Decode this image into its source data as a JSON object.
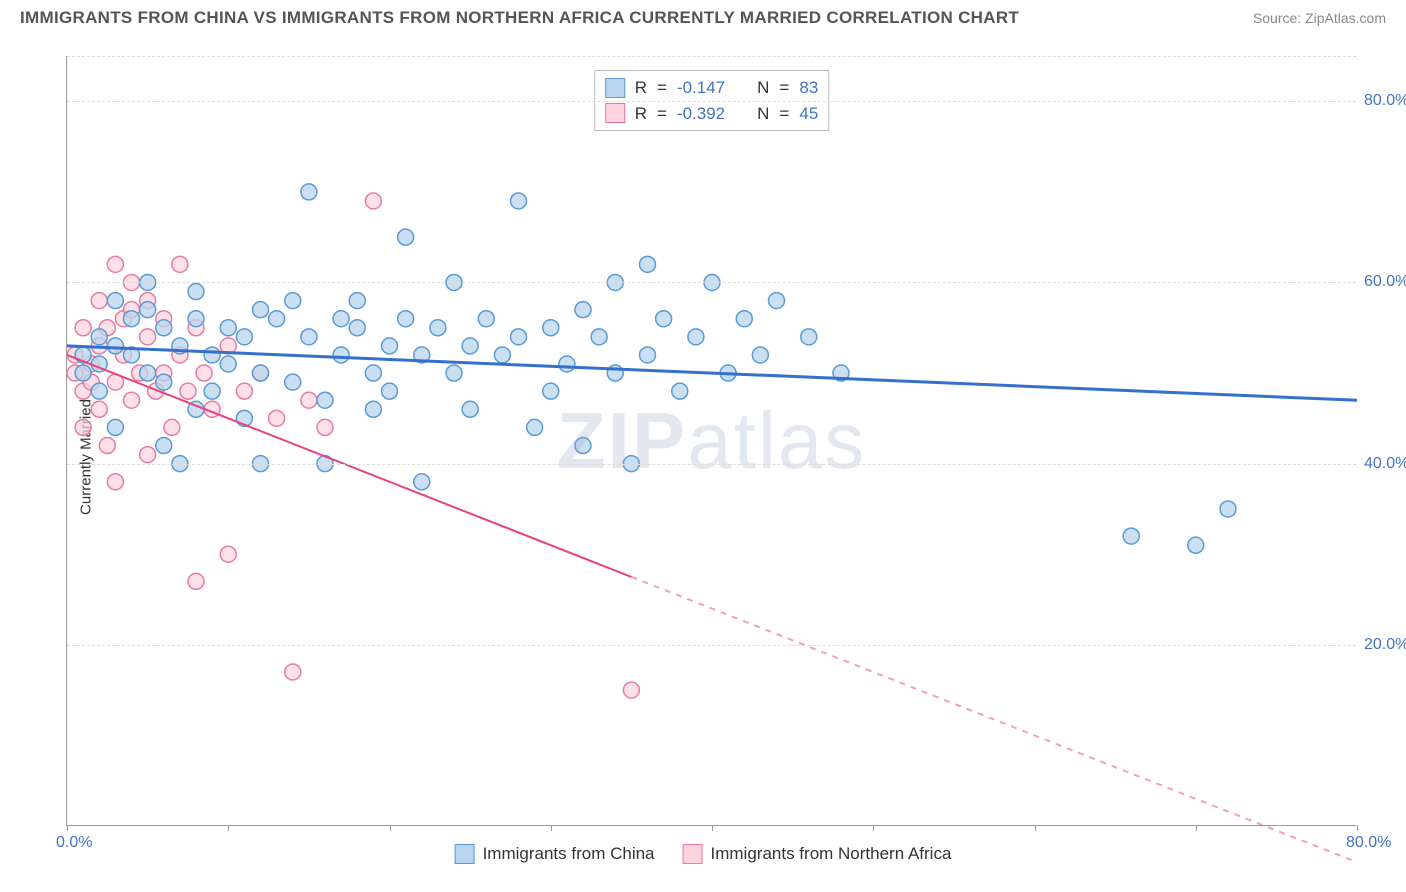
{
  "title": "IMMIGRANTS FROM CHINA VS IMMIGRANTS FROM NORTHERN AFRICA CURRENTLY MARRIED CORRELATION CHART",
  "source_label": "Source: ",
  "source_name": "ZipAtlas.com",
  "watermark_zip": "ZIP",
  "watermark_atlas": "atlas",
  "y_axis_label": "Currently Married",
  "background_color": "#ffffff",
  "grid_color": "#dddddd",
  "axis_color": "#999999",
  "tick_label_color": "#4472c4",
  "x_range": [
    0,
    80
  ],
  "y_range": [
    0,
    85
  ],
  "x_ticks": [
    0,
    10,
    20,
    30,
    40,
    50,
    60,
    70,
    80
  ],
  "y_ticks": [
    20,
    40,
    60,
    80
  ],
  "x_tick_labels": {
    "0": "0.0%",
    "80": "80.0%"
  },
  "y_tick_labels": {
    "20": "20.0%",
    "40": "40.0%",
    "60": "60.0%",
    "80": "80.0%"
  },
  "series": [
    {
      "name": "Immigrants from China",
      "fill": "#b8d4ee",
      "stroke": "#5a9bd5",
      "swatch_fill": "#b8d4ee",
      "swatch_stroke": "#5a9bd5",
      "line_color": "#3470cc",
      "line_width": 3,
      "r": "-0.147",
      "n": "83",
      "marker_r": 8,
      "marker_opacity": 0.75,
      "trend": {
        "x1": 0,
        "y1": 53,
        "x2": 80,
        "y2": 47,
        "dashed_from_x": null
      },
      "points": [
        [
          1,
          52
        ],
        [
          1,
          50
        ],
        [
          2,
          51
        ],
        [
          2,
          54
        ],
        [
          2,
          48
        ],
        [
          3,
          44
        ],
        [
          3,
          53
        ],
        [
          3,
          58
        ],
        [
          4,
          52
        ],
        [
          4,
          56
        ],
        [
          5,
          50
        ],
        [
          5,
          57
        ],
        [
          5,
          60
        ],
        [
          6,
          42
        ],
        [
          6,
          55
        ],
        [
          6,
          49
        ],
        [
          7,
          40
        ],
        [
          7,
          53
        ],
        [
          8,
          46
        ],
        [
          8,
          56
        ],
        [
          8,
          59
        ],
        [
          9,
          52
        ],
        [
          9,
          48
        ],
        [
          10,
          55
        ],
        [
          10,
          51
        ],
        [
          11,
          45
        ],
        [
          11,
          54
        ],
        [
          12,
          57
        ],
        [
          12,
          50
        ],
        [
          12,
          40
        ],
        [
          13,
          56
        ],
        [
          14,
          49
        ],
        [
          14,
          58
        ],
        [
          15,
          54
        ],
        [
          15,
          70
        ],
        [
          16,
          47
        ],
        [
          16,
          40
        ],
        [
          17,
          56
        ],
        [
          17,
          52
        ],
        [
          18,
          58
        ],
        [
          18,
          55
        ],
        [
          19,
          50
        ],
        [
          19,
          46
        ],
        [
          20,
          53
        ],
        [
          20,
          48
        ],
        [
          21,
          56
        ],
        [
          21,
          65
        ],
        [
          22,
          52
        ],
        [
          22,
          38
        ],
        [
          23,
          55
        ],
        [
          24,
          50
        ],
        [
          24,
          60
        ],
        [
          25,
          53
        ],
        [
          25,
          46
        ],
        [
          26,
          56
        ],
        [
          27,
          52
        ],
        [
          28,
          54
        ],
        [
          28,
          69
        ],
        [
          29,
          44
        ],
        [
          30,
          48
        ],
        [
          30,
          55
        ],
        [
          31,
          51
        ],
        [
          32,
          57
        ],
        [
          32,
          42
        ],
        [
          33,
          54
        ],
        [
          34,
          50
        ],
        [
          34,
          60
        ],
        [
          35,
          40
        ],
        [
          36,
          52
        ],
        [
          36,
          62
        ],
        [
          37,
          56
        ],
        [
          38,
          48
        ],
        [
          39,
          54
        ],
        [
          40,
          60
        ],
        [
          41,
          50
        ],
        [
          42,
          56
        ],
        [
          43,
          52
        ],
        [
          44,
          58
        ],
        [
          46,
          54
        ],
        [
          48,
          50
        ],
        [
          66,
          32
        ],
        [
          70,
          31
        ],
        [
          72,
          35
        ]
      ]
    },
    {
      "name": "Immigrants from Northern Africa",
      "fill": "#fcd3de",
      "stroke": "#e87ca0",
      "swatch_fill": "#fcd3de",
      "swatch_stroke": "#e87ca0",
      "line_color": "#e6447a",
      "line_width": 2,
      "r": "-0.392",
      "n": "45",
      "marker_r": 8,
      "marker_opacity": 0.7,
      "trend": {
        "x1": 0,
        "y1": 52,
        "x2": 80,
        "y2": -4,
        "dashed_from_x": 35
      },
      "points": [
        [
          0.5,
          50
        ],
        [
          0.5,
          52
        ],
        [
          1,
          48
        ],
        [
          1,
          55
        ],
        [
          1,
          44
        ],
        [
          1.5,
          51
        ],
        [
          1.5,
          49
        ],
        [
          2,
          58
        ],
        [
          2,
          46
        ],
        [
          2,
          53
        ],
        [
          2.5,
          42
        ],
        [
          2.5,
          55
        ],
        [
          3,
          49
        ],
        [
          3,
          62
        ],
        [
          3,
          38
        ],
        [
          3.5,
          52
        ],
        [
          3.5,
          56
        ],
        [
          4,
          57
        ],
        [
          4,
          60
        ],
        [
          4,
          47
        ],
        [
          4.5,
          50
        ],
        [
          5,
          58
        ],
        [
          5,
          41
        ],
        [
          5,
          54
        ],
        [
          5.5,
          48
        ],
        [
          6,
          56
        ],
        [
          6,
          50
        ],
        [
          6.5,
          44
        ],
        [
          7,
          52
        ],
        [
          7,
          62
        ],
        [
          7.5,
          48
        ],
        [
          8,
          55
        ],
        [
          8,
          27
        ],
        [
          8.5,
          50
        ],
        [
          9,
          46
        ],
        [
          10,
          53
        ],
        [
          10,
          30
        ],
        [
          11,
          48
        ],
        [
          12,
          50
        ],
        [
          13,
          45
        ],
        [
          14,
          17
        ],
        [
          15,
          47
        ],
        [
          16,
          44
        ],
        [
          19,
          69
        ],
        [
          35,
          15
        ]
      ]
    }
  ],
  "legend_labels": {
    "r_prefix": "R",
    "n_prefix": "N",
    "eq": "="
  },
  "bottom_legend": [
    {
      "label": "Immigrants from China",
      "fill": "#b8d4ee",
      "stroke": "#5a9bd5"
    },
    {
      "label": "Immigrants from Northern Africa",
      "fill": "#fcd3de",
      "stroke": "#e87ca0"
    }
  ]
}
